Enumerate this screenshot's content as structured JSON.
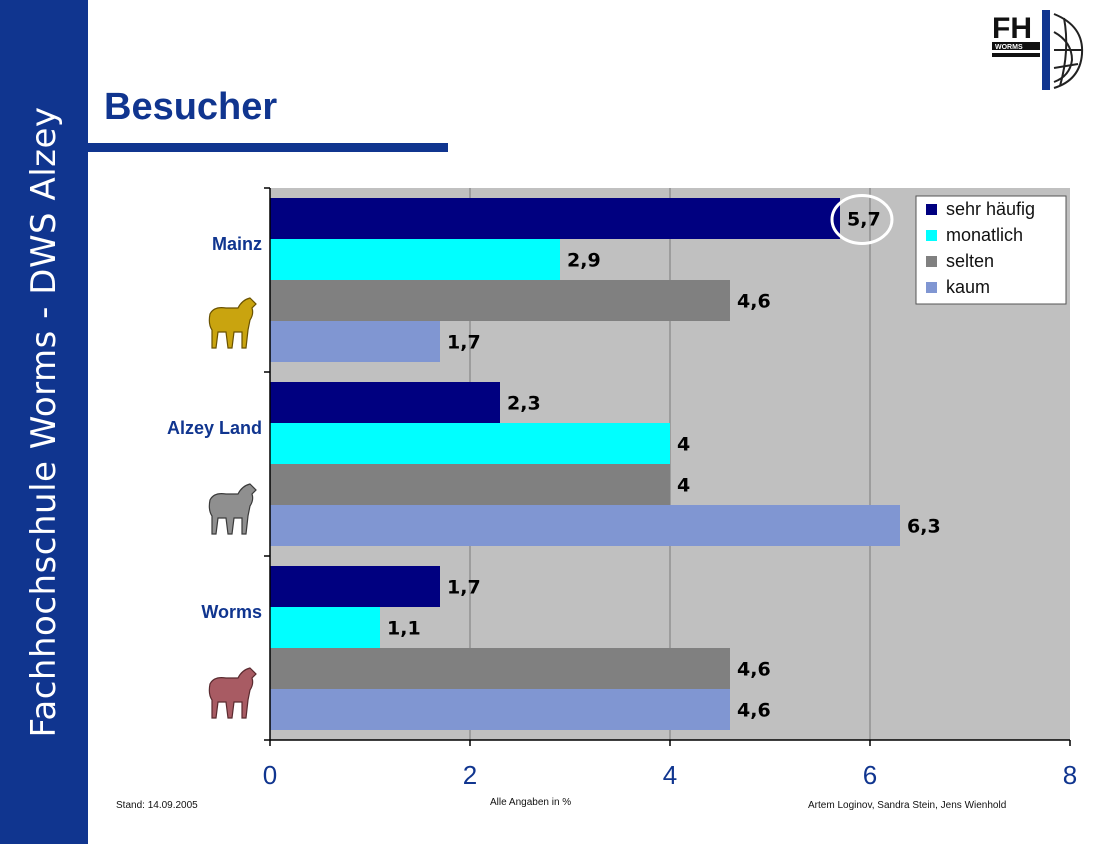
{
  "sidebar": {
    "text": "Fachhochschule Worms - DWS Alzey"
  },
  "page": {
    "title": "Besucher"
  },
  "logo": {
    "text_top": "FH",
    "text_bottom": "WORMS"
  },
  "footer": {
    "date": "Stand: 14.09.2005",
    "note": "Alle Angaben in %",
    "authors": "Artem Loginov, Sandra Stein, Jens Wienhold"
  },
  "colors": {
    "brand": "#10358f",
    "plot_bg": "#c0c0c0",
    "sehr_haeufig": "#000080",
    "monatlich": "#00ffff",
    "selten": "#808080",
    "kaum": "#8096d2",
    "highlight_ring": "#ffffff"
  },
  "chart_data": {
    "type": "bar",
    "orientation": "horizontal",
    "title": "Besucher",
    "xlabel": "",
    "ylabel": "",
    "xlim": [
      0,
      8
    ],
    "ticks": [
      "0",
      "2",
      "4",
      "6",
      "8"
    ],
    "categories": [
      "Mainz",
      "Alzey Land",
      "Worms"
    ],
    "series": [
      {
        "name": "sehr häufig",
        "values": [
          5.7,
          2.3,
          1.7
        ],
        "labels": [
          "5,7",
          "2,3",
          "1,7"
        ]
      },
      {
        "name": "monatlich",
        "values": [
          2.9,
          4,
          1.1
        ],
        "labels": [
          "2,9",
          "4",
          "1,1"
        ]
      },
      {
        "name": "selten",
        "values": [
          4.6,
          4,
          4.6
        ],
        "labels": [
          "4,6",
          "4",
          "4,6"
        ]
      },
      {
        "name": "kaum",
        "values": [
          1.7,
          6.3,
          4.6
        ],
        "labels": [
          "1,7",
          "6,3",
          "4,6"
        ]
      }
    ],
    "legend": "top-right",
    "grid": true,
    "highlight": {
      "category": "Mainz",
      "series": "sehr häufig"
    }
  }
}
